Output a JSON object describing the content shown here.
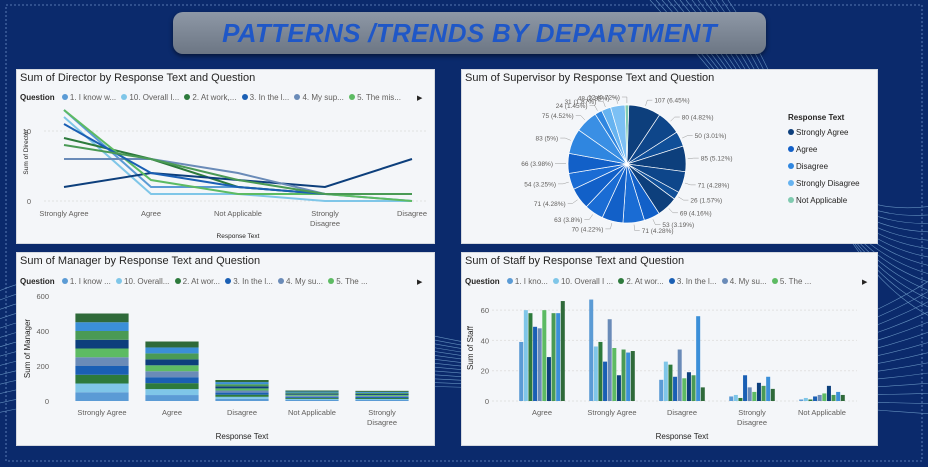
{
  "banner": {
    "title": "PATTERNS /TRENDS BY DEPARTMENT"
  },
  "legend_heading": "Question",
  "colors": {
    "strongly_agree": "#0d3f7c",
    "agree": "#1260c8",
    "disagree": "#2f86e0",
    "strongly_disagree": "#66b3f0",
    "not_applicable": "#7fcab0"
  },
  "director": {
    "title": "Sum of Director by Response Text and Question",
    "legend": [
      "1. I know w...",
      "10. Overall I...",
      "2. At work,...",
      "3. In the l...",
      "4. My sup...",
      "5. The mis..."
    ],
    "ylabel": "Sum of Director",
    "xlabel": "Response Text"
  },
  "supervisor": {
    "title": "Sum of Supervisor by Response Text and Question",
    "legend_title": "Response Text",
    "legend": [
      "Strongly Agree",
      "Agree",
      "Disagree",
      "Strongly Disagree",
      "Not Applicable"
    ]
  },
  "manager": {
    "title": "Sum of Manager by Response Text and Question",
    "legend": [
      "1. I know ...",
      "10. Overall...",
      "2. At wor...",
      "3. In the l...",
      "4. My su...",
      "5. The ..."
    ],
    "ylabel": "Sum of Manager",
    "xlabel": "Response Text"
  },
  "staff": {
    "title": "Sum of Staff by Response Text and Question",
    "legend": [
      "1. I kno...",
      "10. Overall I ...",
      "2. At wor...",
      "3. In the l...",
      "4. My su...",
      "5. The ..."
    ],
    "ylabel": "Sum of Staff",
    "xlabel": "Response Text"
  },
  "chart_data": [
    {
      "type": "line",
      "title": "Sum of Director by Response Text and Question",
      "xlabel": "Response Text",
      "ylabel": "Sum of Director",
      "categories": [
        "Strongly Agree",
        "Agree",
        "Not Applicable",
        "Strongly Disagree",
        "Disagree"
      ],
      "yticks": [
        0,
        10
      ],
      "ylim": [
        0,
        14
      ],
      "grid": true,
      "series": [
        {
          "name": "1. I know w...",
          "color": "#5b9bd5",
          "values": [
            13,
            2,
            2,
            1,
            0
          ]
        },
        {
          "name": "10. Overall I...",
          "color": "#7fc6e8",
          "values": [
            12,
            1,
            1,
            0,
            0
          ]
        },
        {
          "name": "2. At work,...",
          "color": "#2d7a3c",
          "values": [
            9,
            6,
            2,
            1,
            1
          ]
        },
        {
          "name": "3. In the l...",
          "color": "#0d3f7c",
          "values": [
            2,
            4,
            3,
            2,
            6
          ]
        },
        {
          "name": "4. My sup...",
          "color": "#6a8bb8",
          "values": [
            6,
            6,
            4,
            1,
            1
          ]
        },
        {
          "name": "5. The mis...",
          "color": "#5dbb63",
          "values": [
            13,
            3,
            1,
            1,
            0
          ]
        },
        {
          "name": "",
          "color": "#1a5fb4",
          "values": [
            11,
            4,
            2,
            1,
            1
          ]
        },
        {
          "name": "",
          "color": "#4a9a55",
          "values": [
            8,
            6,
            3,
            1,
            1
          ]
        }
      ]
    },
    {
      "type": "pie",
      "title": "Sum of Supervisor by Response Text and Question",
      "legend_title": "Response Text",
      "legend": [
        "Strongly Agree",
        "Agree",
        "Disagree",
        "Strongly Disagree",
        "Not Applicable"
      ],
      "slices": [
        {
          "label": "107 (6.45%)",
          "value": 107,
          "color": "#0d3f7c"
        },
        {
          "label": "80 (4.82%)",
          "value": 80,
          "color": "#0e468a"
        },
        {
          "label": "50 (3.01%)",
          "value": 50,
          "color": "#104f98"
        },
        {
          "label": "85 (5.12%)",
          "value": 85,
          "color": "#0d3f7c"
        },
        {
          "label": "71 (4.28%)",
          "value": 71,
          "color": "#0e468a"
        },
        {
          "label": "26 (1.57%)",
          "value": 26,
          "color": "#104f98"
        },
        {
          "label": "69 (4.16%)",
          "value": 69,
          "color": "#0d3f7c"
        },
        {
          "label": "53 (3.19%)",
          "value": 53,
          "color": "#1260c8"
        },
        {
          "label": "71 (4.28%)",
          "value": 71,
          "color": "#1a6cd4"
        },
        {
          "label": "70 (4.22%)",
          "value": 70,
          "color": "#1260c8"
        },
        {
          "label": "63 (3.8%)",
          "value": 63,
          "color": "#1a6cd4"
        },
        {
          "label": "71 (4.28%)",
          "value": 71,
          "color": "#1260c8"
        },
        {
          "label": "54 (3.25%)",
          "value": 54,
          "color": "#1a6cd4"
        },
        {
          "label": "66 (3.98%)",
          "value": 66,
          "color": "#1260c8"
        },
        {
          "label": "83 (5%)",
          "value": 83,
          "color": "#2f86e0"
        },
        {
          "label": "75 (4.52%)",
          "value": 75,
          "color": "#3a8fe4"
        },
        {
          "label": "24 (1.45%)",
          "value": 24,
          "color": "#2f86e0"
        },
        {
          "label": "31 (1.87%)",
          "value": 31,
          "color": "#66b3f0"
        },
        {
          "label": "48 (2.89%)",
          "value": 48,
          "color": "#7cc0f4"
        },
        {
          "label": "12 (0.72%)",
          "value": 12,
          "color": "#7fcab0"
        }
      ]
    },
    {
      "type": "bar",
      "stacked": true,
      "title": "Sum of Manager by Response Text and Question",
      "xlabel": "Response Text",
      "ylabel": "Sum of Manager",
      "categories": [
        "Strongly Agree",
        "Agree",
        "Disagree",
        "Not Applicable",
        "Strongly Disagree"
      ],
      "totals": [
        500,
        340,
        120,
        60,
        58
      ],
      "yticks": [
        0,
        200,
        400,
        600
      ],
      "ylim": [
        0,
        640
      ]
    },
    {
      "type": "bar",
      "title": "Sum of Staff by Response Text and Question",
      "xlabel": "Response Text",
      "ylabel": "Sum of Staff",
      "categories": [
        "Agree",
        "Strongly Agree",
        "Disagree",
        "Strongly Disagree",
        "Not Applicable"
      ],
      "yticks": [
        0,
        20,
        40,
        60
      ],
      "ylim": [
        0,
        70
      ],
      "grid": true,
      "series": [
        {
          "name": "1. I kno...",
          "color": "#5b9bd5",
          "values": [
            39,
            67,
            14,
            3,
            1
          ]
        },
        {
          "name": "10. Overall I ...",
          "color": "#7fc6e8",
          "values": [
            60,
            36,
            26,
            4,
            2
          ]
        },
        {
          "name": "2. At wor...",
          "color": "#2d7a3c",
          "values": [
            58,
            39,
            24,
            2,
            1
          ]
        },
        {
          "name": "3. In the l...",
          "color": "#1a5fb4",
          "values": [
            49,
            26,
            16,
            17,
            3
          ]
        },
        {
          "name": "4. My su...",
          "color": "#6a8bb8",
          "values": [
            48,
            54,
            34,
            9,
            4
          ]
        },
        {
          "name": "5. The ...",
          "color": "#5dbb63",
          "values": [
            60,
            35,
            15,
            6,
            5
          ]
        },
        {
          "name": "",
          "color": "#0d3f7c",
          "values": [
            29,
            17,
            19,
            12,
            10
          ]
        },
        {
          "name": "",
          "color": "#4a9a55",
          "values": [
            58,
            34,
            17,
            10,
            4
          ]
        },
        {
          "name": "",
          "color": "#3b8fd8",
          "values": [
            58,
            32,
            56,
            16,
            6
          ]
        },
        {
          "name": "",
          "color": "#2f6a3a",
          "values": [
            66,
            33,
            9,
            8,
            4
          ]
        }
      ]
    }
  ]
}
